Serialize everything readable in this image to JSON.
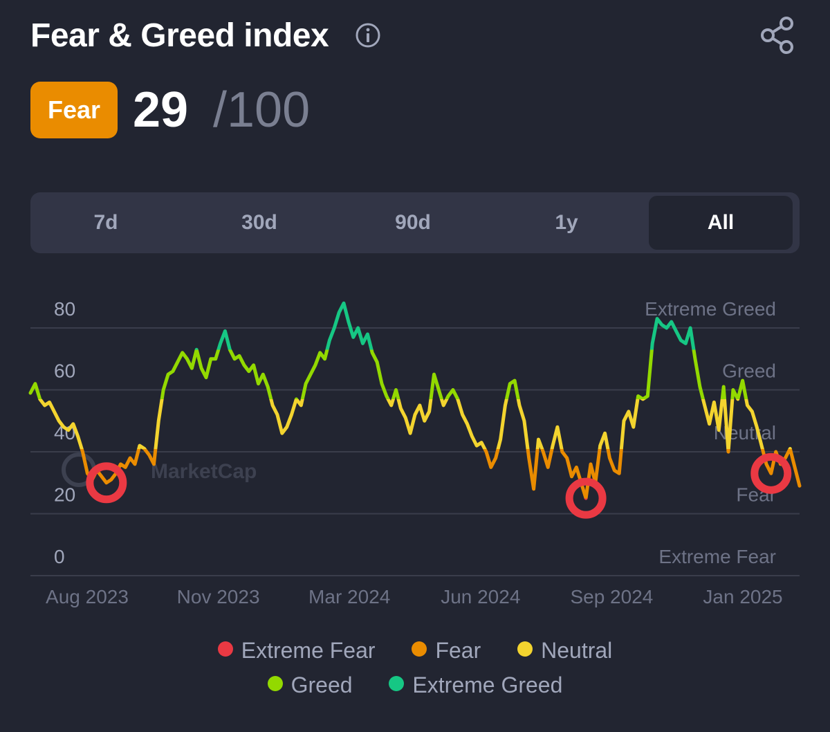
{
  "header": {
    "title": "Fear & Greed index",
    "status_label": "Fear",
    "score": "29",
    "max": "/100"
  },
  "colors": {
    "background": "#222531",
    "extreme_fear": "#ea3943",
    "fear": "#ea8c00",
    "neutral": "#f3d42f",
    "greed": "#93d900",
    "extreme_greed": "#16c784",
    "highlight_circle": "#ea3943"
  },
  "icons": {
    "info": "info-circle-icon",
    "share": "share-icon"
  },
  "range_tabs": [
    {
      "label": "7d",
      "active": false
    },
    {
      "label": "30d",
      "active": false
    },
    {
      "label": "90d",
      "active": false
    },
    {
      "label": "1y",
      "active": false
    },
    {
      "label": "All",
      "active": true
    }
  ],
  "watermark": "MarketCap",
  "chart_data": {
    "type": "line",
    "x_labels": [
      "Aug 2023",
      "Nov 2023",
      "Mar 2024",
      "Jun 2024",
      "Sep 2024",
      "Jan 2025"
    ],
    "y_ticks": [
      0,
      20,
      40,
      60,
      80
    ],
    "ylim": [
      0,
      90
    ],
    "grid": true,
    "zone_labels": [
      "Extreme Greed",
      "Greed",
      "Neutral",
      "Fear",
      "Extreme Fear"
    ],
    "legend": [
      "Extreme Fear",
      "Fear",
      "Neutral",
      "Greed",
      "Extreme Greed"
    ],
    "legend_placement": "bottom",
    "series": [
      {
        "values": [
          59,
          62,
          57,
          55,
          56,
          53,
          50,
          48,
          47,
          49,
          45,
          40,
          33,
          31,
          34,
          32,
          30,
          31,
          33,
          36,
          35,
          38,
          36,
          42,
          41,
          39,
          36,
          50,
          60,
          65,
          66,
          69,
          72,
          70,
          67,
          73,
          67,
          64,
          70,
          70,
          75,
          79,
          73,
          70,
          71,
          68,
          66,
          68,
          62,
          65,
          61,
          55,
          52,
          46,
          48,
          52,
          57,
          55,
          62,
          65,
          68,
          72,
          70,
          76,
          80,
          85,
          88,
          82,
          77,
          80,
          75,
          78,
          72,
          69,
          62,
          58,
          55,
          60,
          54,
          51,
          46,
          52,
          55,
          50,
          53,
          65,
          60,
          55,
          58,
          60,
          57,
          52,
          49,
          45,
          42,
          43,
          40,
          35,
          38,
          44,
          55,
          62,
          63,
          55,
          50,
          38,
          28,
          44,
          40,
          35,
          42,
          48,
          40,
          38,
          32,
          35,
          30,
          25,
          36,
          30,
          42,
          46,
          38,
          34,
          33,
          50,
          53,
          48,
          58,
          57,
          58,
          75,
          83,
          81,
          80,
          82,
          79,
          76,
          75,
          80,
          70,
          61,
          55,
          49,
          56,
          47,
          61,
          40,
          60,
          57,
          63,
          55,
          53,
          48,
          42,
          36,
          33,
          40,
          36,
          38,
          41,
          35,
          29
        ]
      }
    ],
    "highlighted_lows": [
      "Aug 2023",
      "Sep 2024",
      "Jan 2025"
    ]
  },
  "legend_rows": [
    [
      {
        "label": "Extreme Fear",
        "color": "#ea3943"
      },
      {
        "label": "Fear",
        "color": "#ea8c00"
      },
      {
        "label": "Neutral",
        "color": "#f3d42f"
      }
    ],
    [
      {
        "label": "Greed",
        "color": "#93d900"
      },
      {
        "label": "Extreme Greed",
        "color": "#16c784"
      }
    ]
  ]
}
